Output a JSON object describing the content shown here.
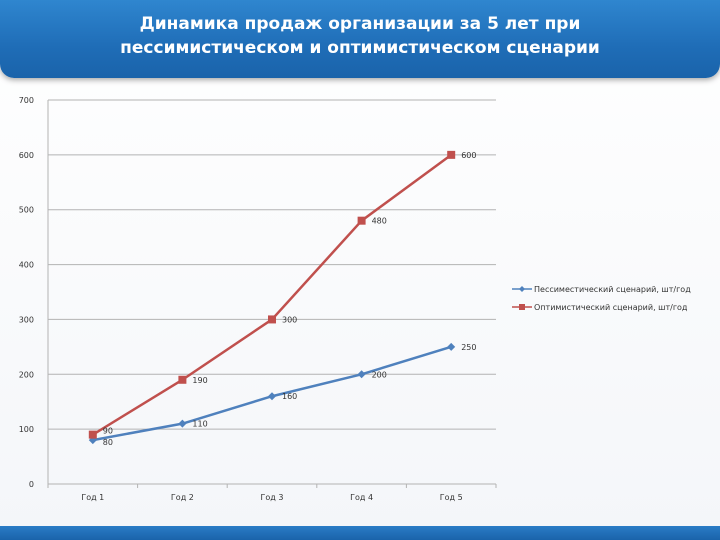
{
  "title_lines": [
    "Динамика продаж организации за 5 лет при",
    "пессимистическом и оптимистическом сценарии"
  ],
  "colors": {
    "title_bar": "#1f6db7",
    "series_pessimistic": "#4f81bd",
    "series_optimistic": "#c0504d",
    "grid": "#b3b3b3"
  },
  "chart_data": {
    "type": "line",
    "categories": [
      "Год 1",
      "Год 2",
      "Год 3",
      "Год 4",
      "Год 5"
    ],
    "series": [
      {
        "name": "Пессиместический сценарий, шт/год",
        "values": [
          80,
          110,
          160,
          200,
          250
        ],
        "marker": "diamond"
      },
      {
        "name": "Оптимистический сценарий, шт/год",
        "values": [
          90,
          190,
          300,
          480,
          600
        ],
        "marker": "square"
      }
    ],
    "ylim": [
      0,
      700
    ],
    "yticks": [
      0,
      100,
      200,
      300,
      400,
      500,
      600,
      700
    ],
    "grid": true,
    "legend": "right"
  }
}
